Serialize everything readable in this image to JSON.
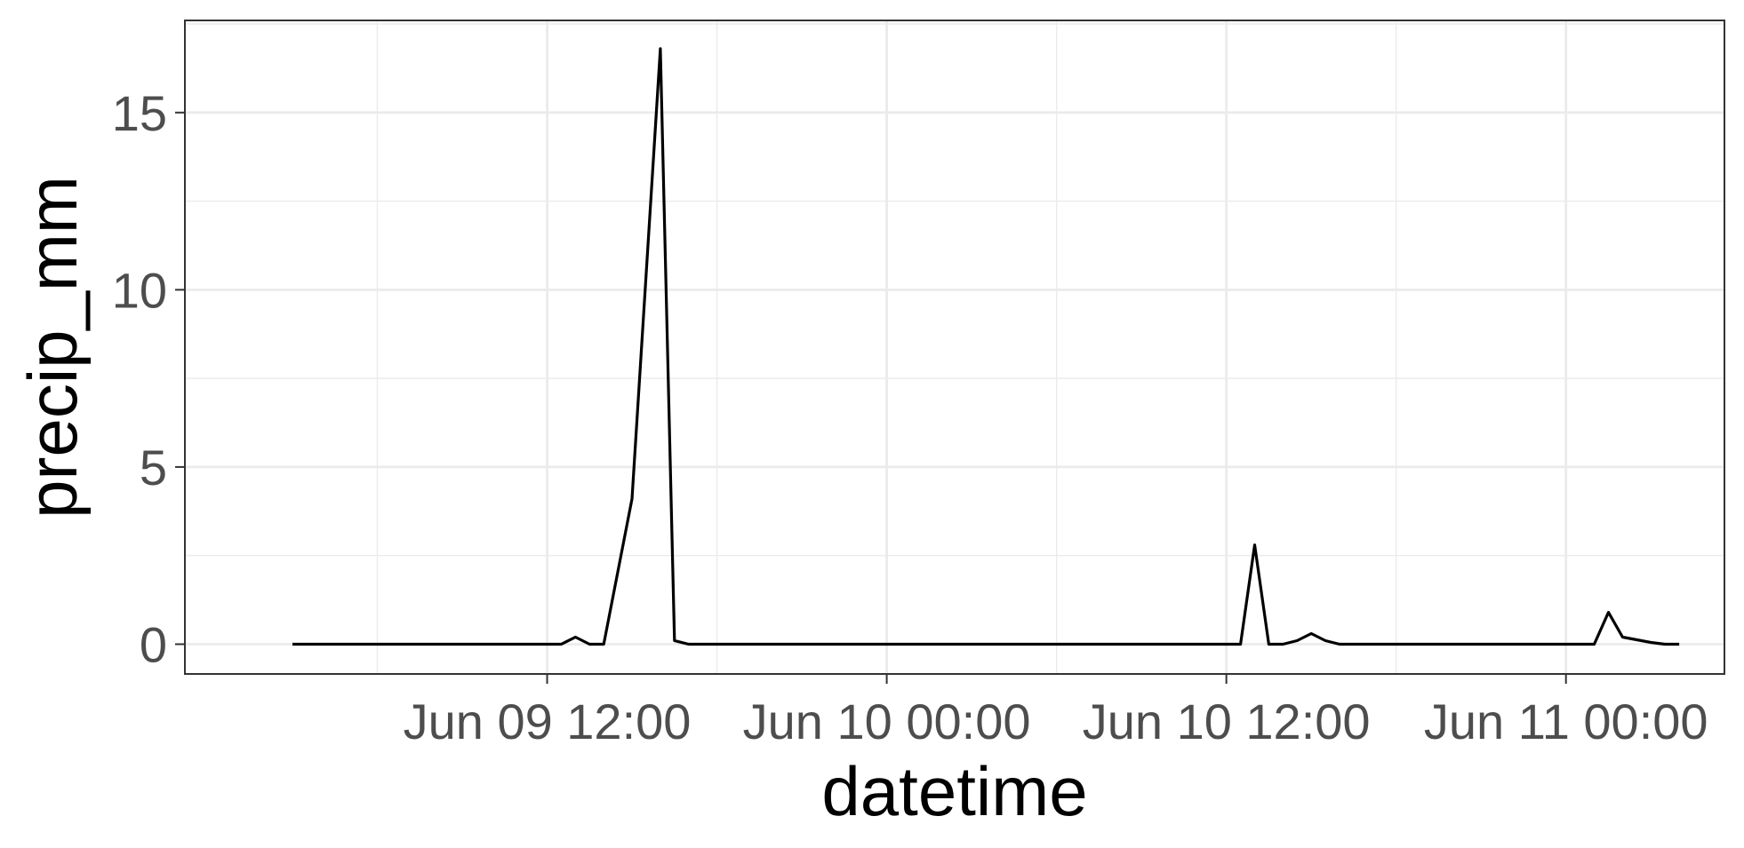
{
  "chart_data": {
    "type": "line",
    "title": "",
    "xlabel": "datetime",
    "ylabel": "precip_mm",
    "x_ticks": [
      "Jun 09 12:00",
      "Jun 10 00:00",
      "Jun 10 12:00",
      "Jun 11 00:00"
    ],
    "x_tick_values": [
      "2023-06-09T12:00",
      "2023-06-10T00:00",
      "2023-06-10T12:00",
      "2023-06-11T00:00"
    ],
    "xlim": [
      "2023-06-08T23:12",
      "2023-06-11T05:36"
    ],
    "y_ticks": [
      0,
      5,
      10,
      15
    ],
    "ylim": [
      -0.84,
      17.6
    ],
    "grid": true,
    "legend": "none",
    "colors": {
      "line": "#000000",
      "grid": "#ebebeb",
      "panel_border": "#333333"
    },
    "series": [
      {
        "x": [
          "2023-06-09T03:00",
          "2023-06-09T12:30",
          "2023-06-09T13:00",
          "2023-06-09T13:30",
          "2023-06-09T14:00",
          "2023-06-09T15:00",
          "2023-06-09T16:00",
          "2023-06-09T16:30",
          "2023-06-09T17:00",
          "2023-06-10T12:30",
          "2023-06-10T13:00",
          "2023-06-10T13:30",
          "2023-06-10T14:00",
          "2023-06-10T14:30",
          "2023-06-10T15:00",
          "2023-06-10T15:30",
          "2023-06-10T16:00",
          "2023-06-11T01:00",
          "2023-06-11T01:30",
          "2023-06-11T02:00",
          "2023-06-11T03:00",
          "2023-06-11T03:30",
          "2023-06-11T04:00"
        ],
        "y": [
          0,
          0,
          0.2,
          0,
          0,
          4.1,
          16.8,
          0.1,
          0,
          0,
          2.8,
          0,
          0,
          0.1,
          0.3,
          0.1,
          0,
          0,
          0.9,
          0.2,
          0.05,
          0,
          0
        ]
      }
    ]
  }
}
